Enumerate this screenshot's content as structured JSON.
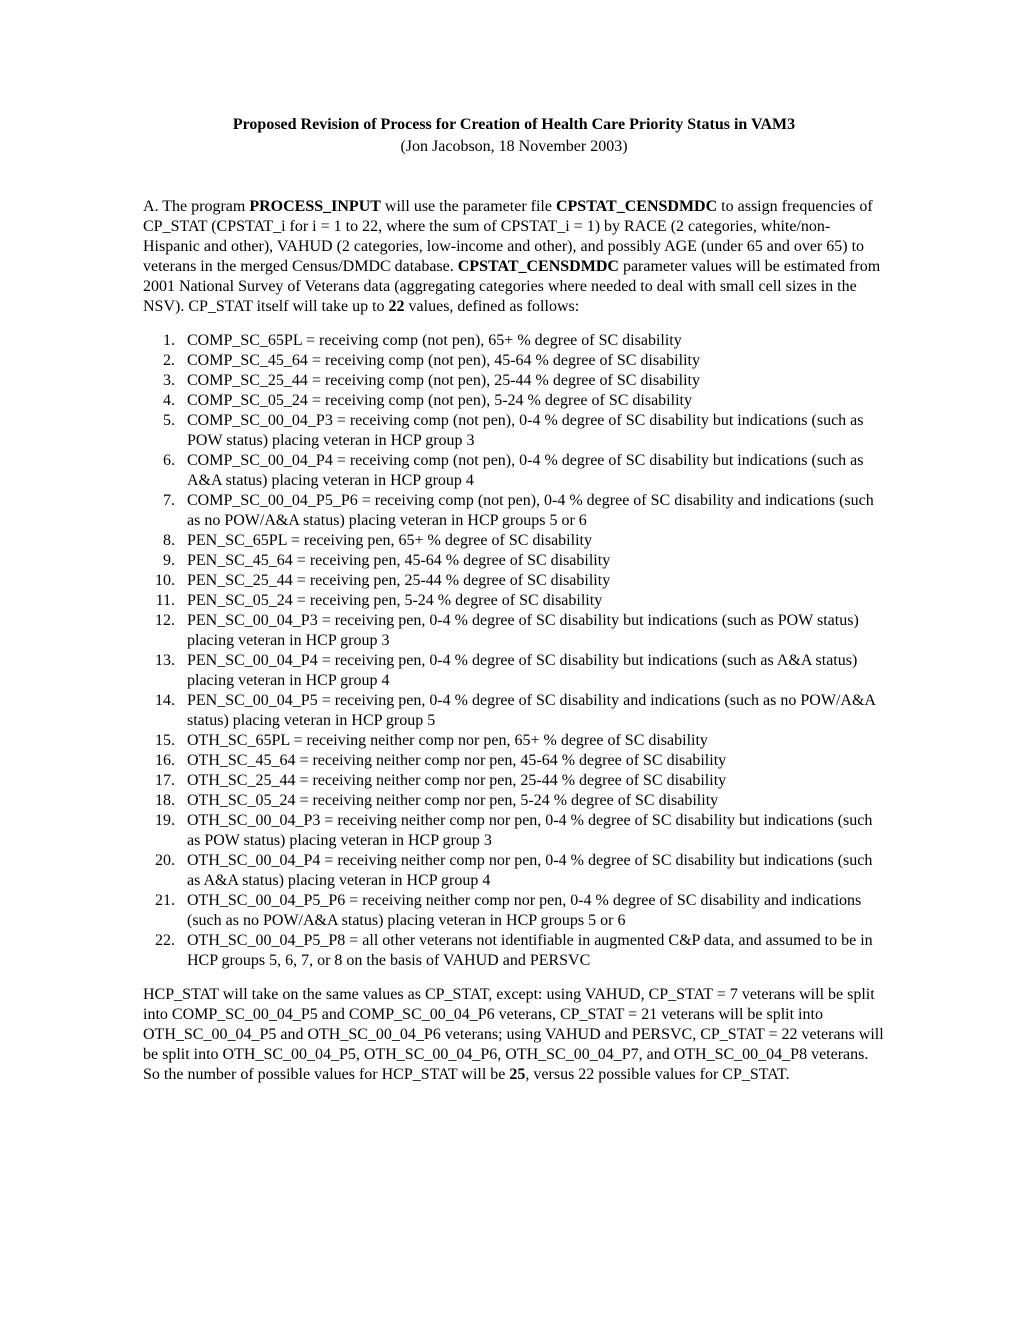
{
  "title": "Proposed Revision of Process for Creation of Health Care Priority Status in VAM3",
  "subtitle": "(Jon Jacobson, 18 November 2003)",
  "intro_prefix": "A.   The program ",
  "intro_bold1": "PROCESS_INPUT",
  "intro_mid1": " will use the parameter file ",
  "intro_bold2": "CPSTAT_CENSDMDC",
  "intro_mid2": " to assign frequencies of CP_STAT (CPSTAT_i for i = 1 to 22, where the sum of CPSTAT_i = 1) by RACE (2 categories, white/non-Hispanic and other), VAHUD (2 categories, low-income and other), and possibly AGE (under 65 and over 65) to veterans in the merged Census/DMDC database.  ",
  "intro_bold3": "CPSTAT_CENSDMDC",
  "intro_mid3": " parameter values will be estimated from 2001 National Survey of Veterans data (aggregating categories where needed to deal with small cell sizes in the NSV).  CP_STAT itself will take up to ",
  "intro_bold4": "22",
  "intro_tail": " values, defined as follows:",
  "items": [
    "COMP_SC_65PL = receiving comp (not pen), 65+ % degree of SC disability",
    "COMP_SC_45_64 = receiving comp (not pen), 45-64 % degree of SC disability",
    "COMP_SC_25_44 = receiving comp (not pen), 25-44 % degree of SC disability",
    "COMP_SC_05_24 = receiving comp (not pen), 5-24 % degree of SC disability",
    "COMP_SC_00_04_P3 = receiving comp (not pen), 0-4 % degree of SC disability but indications (such as POW status) placing veteran in HCP group 3",
    "COMP_SC_00_04_P4 = receiving comp (not pen), 0-4 % degree of SC disability but indications (such as A&A status) placing veteran in HCP group 4",
    "COMP_SC_00_04_P5_P6 = receiving comp (not pen), 0-4 % degree of SC disability and indications (such as no POW/A&A status) placing veteran in HCP groups 5 or 6",
    "PEN_SC_65PL = receiving pen, 65+ % degree of SC disability",
    "PEN_SC_45_64 = receiving pen, 45-64 % degree of SC disability",
    "PEN_SC_25_44 = receiving pen, 25-44 % degree of SC disability",
    "PEN_SC_05_24 = receiving pen, 5-24 % degree of SC disability",
    "PEN_SC_00_04_P3 = receiving pen, 0-4 % degree of SC disability but indications (such as POW status) placing veteran in HCP group 3",
    "PEN_SC_00_04_P4 = receiving pen, 0-4 % degree of SC disability but indications (such as A&A status) placing veteran in HCP group 4",
    "PEN_SC_00_04_P5 = receiving pen, 0-4 % degree of SC disability and indications (such as no POW/A&A status) placing veteran in HCP group 5",
    "OTH_SC_65PL = receiving neither comp nor pen, 65+ % degree of SC disability",
    "OTH_SC_45_64 = receiving neither comp nor pen, 45-64 % degree of SC disability",
    "OTH_SC_25_44 = receiving neither comp nor pen, 25-44 % degree of SC disability",
    "OTH_SC_05_24 = receiving neither comp nor pen, 5-24 % degree of SC disability",
    "OTH_SC_00_04_P3 = receiving neither comp nor pen, 0-4 % degree of SC disability but indications (such as POW status) placing veteran in HCP group 3",
    "OTH_SC_00_04_P4 = receiving neither comp nor pen, 0-4 % degree of SC disability but indications (such as A&A status) placing veteran in HCP group 4",
    "OTH_SC_00_04_P5_P6 = receiving neither comp nor pen, 0-4 % degree of SC disability and indications (such as no POW/A&A status) placing veteran in HCP groups 5 or 6",
    "OTH_SC_00_04_P5_P8  = all other veterans not identifiable in augmented C&P data, and assumed to be in HCP groups 5, 6, 7, or 8 on the basis of VAHUD and PERSVC"
  ],
  "closing_pre": "HCP_STAT will take on the same values as CP_STAT, except: using VAHUD, CP_STAT = 7 veterans will be split into COMP_SC_00_04_P5 and COMP_SC_00_04_P6 veterans, CP_STAT = 21 veterans will be split into OTH_SC_00_04_P5 and OTH_SC_00_04_P6 veterans; using VAHUD and PERSVC, CP_STAT = 22 veterans will be split into OTH_SC_00_04_P5, OTH_SC_00_04_P6, OTH_SC_00_04_P7, and OTH_SC_00_04_P8 veterans.  So the number of possible values for HCP_STAT will be ",
  "closing_bold": "25",
  "closing_post": ", versus 22 possible values for CP_STAT."
}
